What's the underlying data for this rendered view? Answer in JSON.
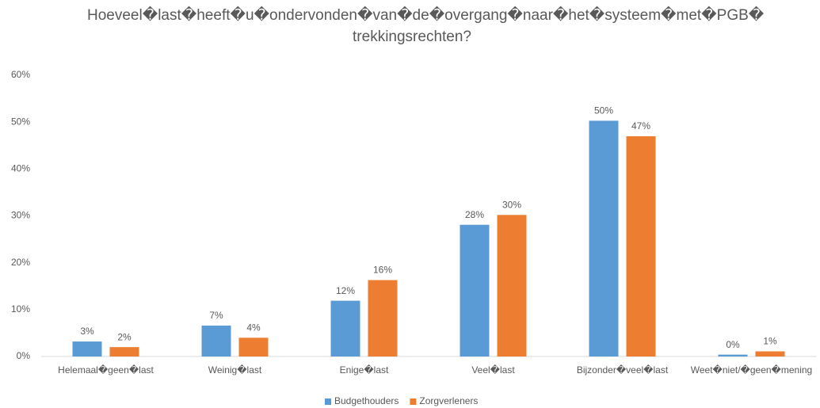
{
  "chart_data": {
    "type": "bar",
    "title": "Hoeveel�last�heeft�u�ondervonden�van�de�overgang�naar�het�systeem�met�PGB� trekkingsrechten?",
    "categories": [
      "Helemaal�geen�last",
      "Weinig�last",
      "Enige�last",
      "Veel�last",
      "Bijzonder�veel�last",
      "Weet�niet/�geen�mening"
    ],
    "series": [
      {
        "name": "Budgethouders",
        "color": "#5b9bd5",
        "values": [
          3.2,
          6.6,
          11.9,
          28.1,
          50.3,
          0.4
        ],
        "value_labels": [
          "3%",
          "7%",
          "12%",
          "28%",
          "50%",
          "0%"
        ]
      },
      {
        "name": "Zorgverleners",
        "color": "#ed7d31",
        "values": [
          2.0,
          4.0,
          16.3,
          30.2,
          47.0,
          1.1
        ],
        "value_labels": [
          "2%",
          "4%",
          "16%",
          "30%",
          "47%",
          "1%"
        ]
      }
    ],
    "ylim": [
      0,
      60
    ],
    "yticks": [
      {
        "value": 0,
        "label": "0%"
      },
      {
        "value": 10,
        "label": "10%"
      },
      {
        "value": 20,
        "label": "20%"
      },
      {
        "value": 30,
        "label": "30%"
      },
      {
        "value": 40,
        "label": "40%"
      },
      {
        "value": 50,
        "label": "50%"
      },
      {
        "value": 60,
        "label": "60%"
      }
    ],
    "grid": false,
    "legend": "bottom"
  }
}
